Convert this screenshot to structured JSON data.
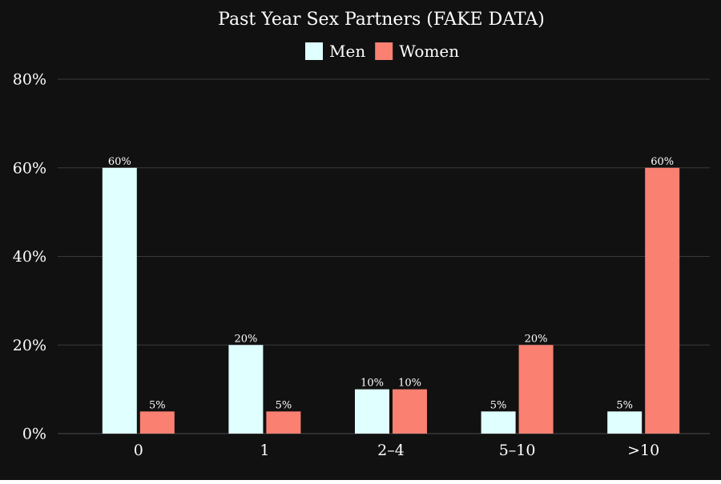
{
  "chart_data": {
    "type": "bar",
    "title": "Past Year Sex Partners (FAKE DATA)",
    "categories": [
      "0",
      "1",
      "2–4",
      "5–10",
      ">10"
    ],
    "series": [
      {
        "name": "Men",
        "color": "#e0ffff",
        "values": [
          60,
          20,
          10,
          5,
          5
        ]
      },
      {
        "name": "Women",
        "color": "#fa8072",
        "values": [
          5,
          5,
          10,
          20,
          60
        ]
      }
    ],
    "data_labels": [
      [
        "60%",
        "20%",
        "10%",
        "5%",
        "5%"
      ],
      [
        "5%",
        "5%",
        "10%",
        "20%",
        "60%"
      ]
    ],
    "yticks": [
      0,
      20,
      40,
      60,
      80
    ],
    "ytick_labels": [
      "0%",
      "20%",
      "40%",
      "60%",
      "80%"
    ],
    "ylim": [
      0,
      80
    ],
    "xlabel": "",
    "ylabel": "",
    "grid": true,
    "legend_position": "top",
    "background_color": "#111111",
    "text_color": "#ffffff"
  }
}
